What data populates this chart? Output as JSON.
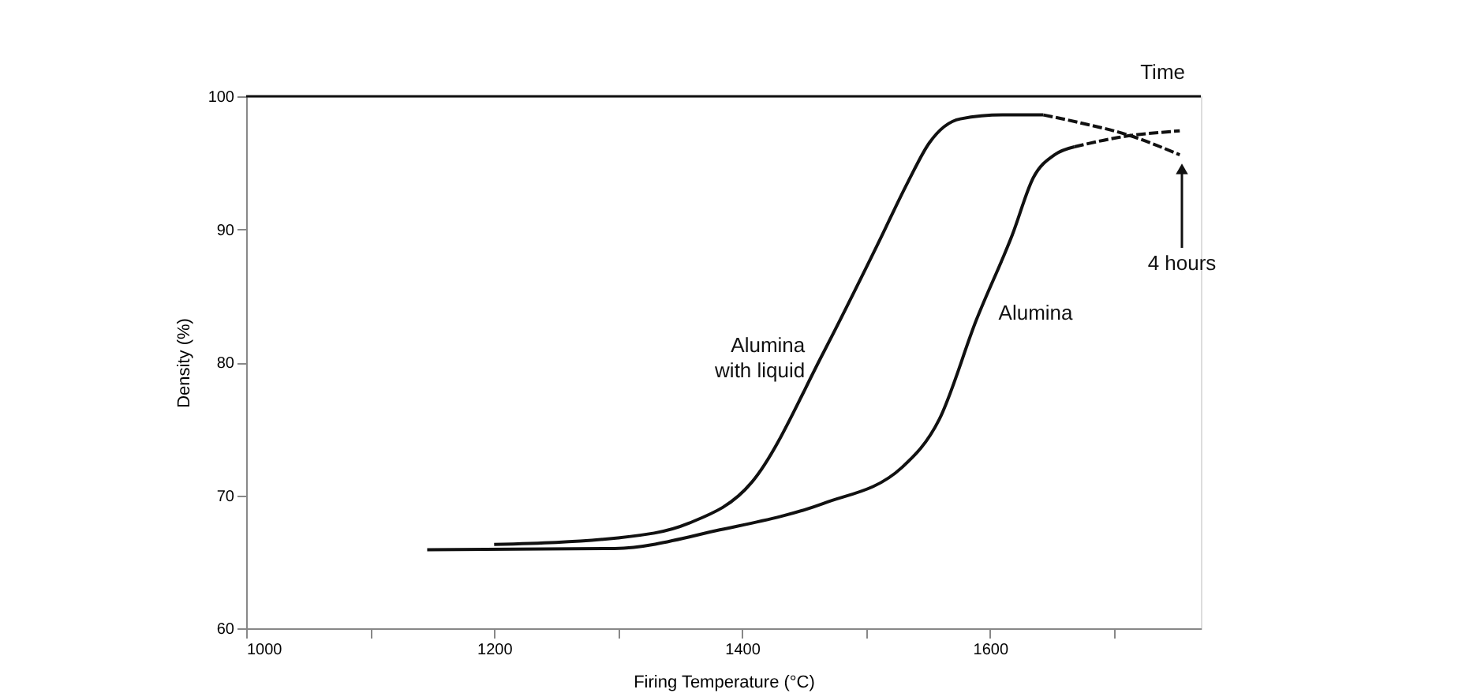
{
  "chart_data": {
    "type": "line",
    "xlabel": "Firing Temperature (°C)",
    "ylabel": "Density (%)",
    "xlim": [
      1000,
      1770
    ],
    "ylim": [
      60,
      100
    ],
    "xticks": [
      1000,
      {
        "value": 1100,
        "label": null
      },
      1200,
      {
        "value": 1300,
        "label": null
      },
      1400,
      {
        "value": 1500,
        "label": null
      },
      1600,
      {
        "value": 1700,
        "label": null
      }
    ],
    "yticks": [
      60,
      70,
      80,
      90,
      100
    ],
    "grid": false,
    "marker": "none",
    "series": [
      {
        "name": "Alumina\nwith liquid",
        "color": "#111111",
        "line_style": "solid",
        "x": [
          1200,
          1300,
          1357,
          1408,
          1466,
          1509,
          1534,
          1551,
          1576,
          1610,
          1643
        ],
        "values": [
          66.3,
          66.8,
          67.9,
          71.0,
          80.8,
          88.8,
          93.6,
          96.5,
          98.3,
          98.6,
          98.6
        ]
      },
      {
        "color": "#111111",
        "line_style": "dashed",
        "x": [
          1643,
          1673,
          1711,
          1753
        ],
        "values": [
          98.6,
          98.0,
          97.1,
          95.6
        ]
      },
      {
        "name": "Alumina",
        "color": "#111111",
        "line_style": "solid",
        "x": [
          1146,
          1297,
          1382,
          1466,
          1529,
          1559,
          1589,
          1618,
          1635,
          1652,
          1668
        ],
        "values": [
          65.9,
          66.0,
          67.4,
          69.4,
          72.1,
          75.7,
          83.2,
          89.6,
          93.9,
          95.6,
          96.2
        ]
      },
      {
        "color": "#111111",
        "line_style": "dashed",
        "x": [
          1668,
          1703,
          1753
        ],
        "values": [
          96.2,
          96.9,
          97.4
        ]
      }
    ],
    "annotations": [
      "4 hours",
      "Time"
    ]
  }
}
